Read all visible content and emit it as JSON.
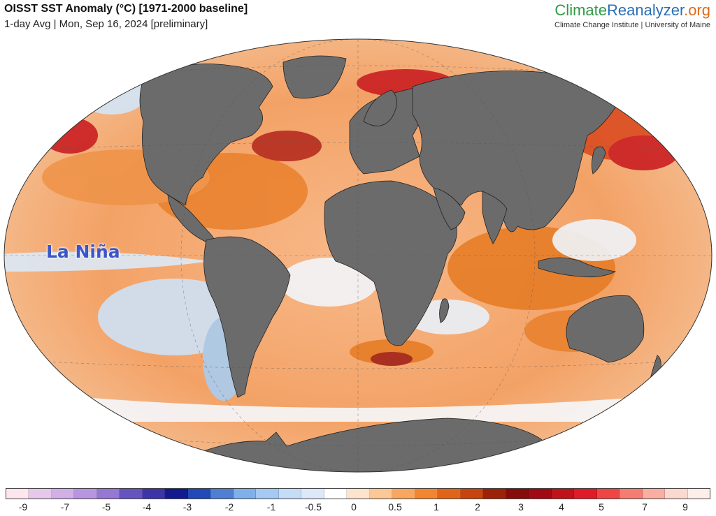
{
  "header": {
    "title": "OISST SST Anomaly (°C) [1971-2000 baseline]",
    "subtitle": "1-day Avg | Mon, Sep 16, 2024 [preliminary]"
  },
  "brand": {
    "logo_part1": "Climate",
    "logo_part2": "Reanalyzer",
    "logo_part3": ".org",
    "tagline": "Climate Change Institute | University of Maine"
  },
  "map": {
    "annotation": "La Niña",
    "colors": {
      "land": "#6b6b6b",
      "ocean_base": "#f6b27a",
      "warm": "#e5761f",
      "hot": "#c0121b",
      "cool": "#bcd8f2",
      "ice": "#ffffff"
    }
  },
  "legend": {
    "colors": [
      "#fde6f0",
      "#e6c9ea",
      "#d2b0e6",
      "#b895e0",
      "#9577d4",
      "#6553c0",
      "#3b35a8",
      "#131a8f",
      "#2249b8",
      "#4e7fd2",
      "#7fb0ea",
      "#a5c9f2",
      "#c4dcf6",
      "#dde9f8",
      "#ffffff",
      "#fde4cc",
      "#fcc896",
      "#f9a661",
      "#f18632",
      "#e0651a",
      "#c74410",
      "#9c2208",
      "#860b0b",
      "#a10a14",
      "#c0121b",
      "#de1b26",
      "#f04545",
      "#f57c73",
      "#f9aea3",
      "#fcd9d0",
      "#fdeee9"
    ],
    "ticks": [
      "-9",
      "-7",
      "-5",
      "-4",
      "-3",
      "-2",
      "-1",
      "-0.5",
      "0",
      "0.5",
      "1",
      "2",
      "3",
      "4",
      "5",
      "7",
      "9"
    ]
  }
}
